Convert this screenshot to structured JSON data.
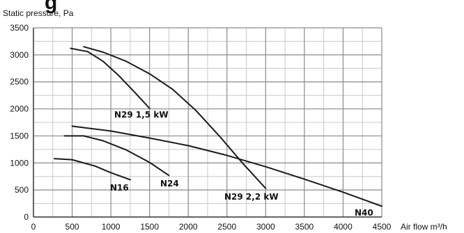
{
  "chart_data": {
    "type": "line",
    "heading_fragment": "g",
    "ylabel": "Static pressure, Pa",
    "xlabel": "Air flow m³/h",
    "xlim": [
      0,
      4500
    ],
    "ylim": [
      0,
      3500
    ],
    "x_ticks": [
      0,
      500,
      1000,
      1500,
      2000,
      2500,
      3000,
      3500,
      4000,
      4500
    ],
    "y_ticks": [
      0,
      500,
      1000,
      1500,
      2000,
      2500,
      3000,
      3500
    ],
    "grid": true,
    "grid_minor": true,
    "legend": "none",
    "series": [
      {
        "name": "N29 1,5 kW",
        "x": [
          480,
          700,
          900,
          1100,
          1300,
          1500
        ],
        "y": [
          3120,
          3060,
          2880,
          2620,
          2320,
          2010
        ]
      },
      {
        "name": "N29 2,2 kW",
        "x": [
          650,
          900,
          1200,
          1500,
          1800,
          2100,
          2400,
          2700,
          3000
        ],
        "y": [
          3150,
          3050,
          2880,
          2650,
          2360,
          1970,
          1500,
          1000,
          530
        ]
      },
      {
        "name": "N24",
        "x": [
          400,
          650,
          900,
          1200,
          1500,
          1750
        ],
        "y": [
          1500,
          1500,
          1410,
          1240,
          1010,
          770
        ]
      },
      {
        "name": "N16",
        "x": [
          270,
          500,
          800,
          1000,
          1250
        ],
        "y": [
          1080,
          1060,
          940,
          820,
          690
        ]
      },
      {
        "name": "N40",
        "x": [
          500,
          1000,
          1500,
          2000,
          2500,
          3000,
          3500,
          4000,
          4500
        ],
        "y": [
          1680,
          1590,
          1460,
          1320,
          1140,
          930,
          700,
          460,
          200
        ]
      }
    ]
  }
}
